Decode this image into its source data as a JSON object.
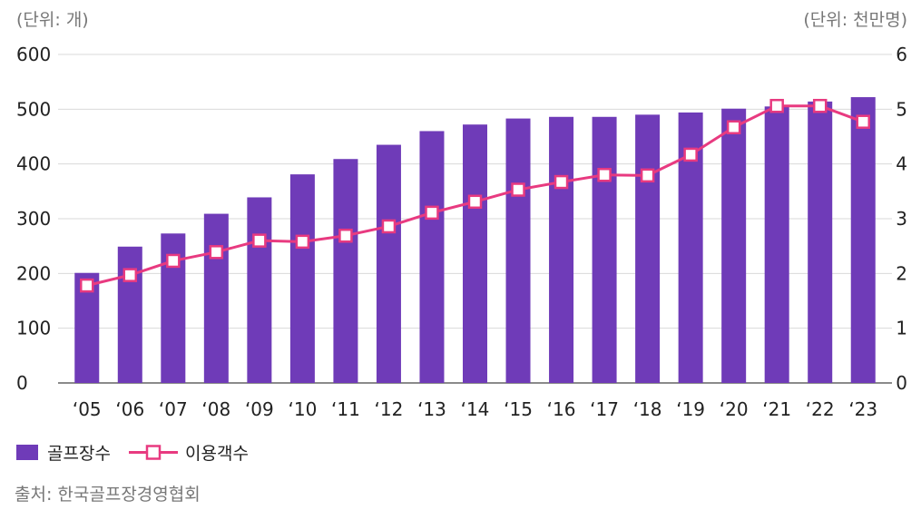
{
  "chart_data": {
    "type": "bar+line",
    "left_unit": "(단위: 개)",
    "right_unit": "(단위: 천만명)",
    "categories": [
      "‘05",
      "‘06",
      "‘07",
      "‘08",
      "‘09",
      "‘10",
      "‘11",
      "‘12",
      "‘13",
      "‘14",
      "‘15",
      "‘16",
      "‘17",
      "‘18",
      "‘19",
      "‘20",
      "‘21",
      "‘22",
      "‘23"
    ],
    "left_axis": {
      "ylim": [
        0,
        600
      ],
      "ticks": [
        "0",
        "100",
        "200",
        "300",
        "400",
        "500",
        "600"
      ]
    },
    "right_axis": {
      "ylim": [
        0,
        6
      ],
      "ticks": [
        "0",
        "1",
        "2",
        "3",
        "4",
        "5",
        "6"
      ]
    },
    "series": [
      {
        "name": "골프장수",
        "kind": "bar",
        "axis": "left",
        "color": "#6f3bb8",
        "values": [
          201,
          249,
          273,
          309,
          339,
          381,
          409,
          435,
          460,
          472,
          483,
          486,
          486,
          490,
          494,
          501,
          505,
          514,
          522
        ]
      },
      {
        "name": "이용객수",
        "kind": "line",
        "axis": "right",
        "color": "#e83a80",
        "values": [
          1.78,
          1.97,
          2.23,
          2.39,
          2.6,
          2.58,
          2.69,
          2.86,
          3.11,
          3.31,
          3.53,
          3.67,
          3.8,
          3.79,
          4.17,
          4.67,
          5.06,
          5.06,
          4.77
        ]
      }
    ],
    "grid": true,
    "legend": "bottom-left"
  },
  "source": "출처: 한국골프장경영협회"
}
